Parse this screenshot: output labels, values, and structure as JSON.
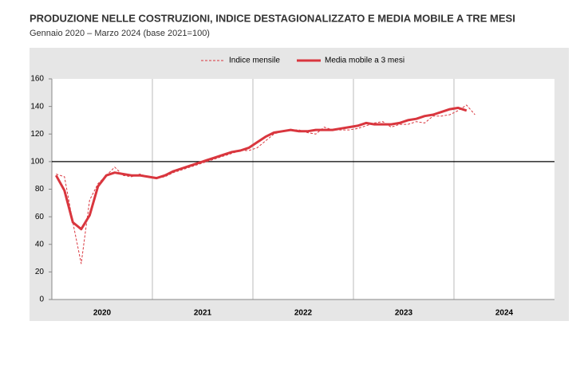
{
  "chart_data": {
    "type": "line",
    "title": "PRODUZIONE NELLE COSTRUZIONI, INDICE DESTAGIONALIZZATO E MEDIA MOBILE A TRE MESI",
    "subtitle": "Gennaio 2020 – Marzo 2024 (base 2021=100)",
    "x_labels": [
      "2020",
      "2021",
      "2022",
      "2023",
      "2024"
    ],
    "categories": [
      null,
      null,
      null,
      null,
      null,
      null,
      null,
      null,
      null,
      null,
      null,
      null,
      null,
      null,
      null,
      null,
      null,
      null,
      null,
      null,
      null,
      null,
      null,
      null,
      null,
      null,
      null,
      null,
      null,
      null,
      null,
      null,
      null,
      null,
      null,
      null,
      null,
      null,
      null,
      null,
      null,
      null,
      null,
      null,
      null,
      null,
      null,
      null,
      null,
      null,
      null
    ],
    "series": [
      {
        "name": "Indice mensile",
        "color": "#d9363e",
        "dashed": true,
        "values": [
          91,
          89,
          56,
          26,
          72,
          84,
          90,
          96,
          90,
          89,
          91,
          89,
          88,
          89,
          92,
          94,
          96,
          98,
          100,
          102,
          104,
          106,
          108,
          108,
          110,
          115,
          120,
          122,
          123,
          123,
          121,
          120,
          125,
          123,
          123,
          123,
          124,
          126,
          128,
          129,
          125,
          127,
          127,
          129,
          128,
          133,
          133,
          134,
          137,
          141,
          134
        ]
      },
      {
        "name": "Media mobile a 3 mesi",
        "color": "#d9363e",
        "dashed": false,
        "values": [
          90,
          79,
          56,
          51,
          61,
          82,
          90,
          92,
          91,
          90,
          90,
          89,
          88,
          90,
          93,
          95,
          97,
          99,
          101,
          103,
          105,
          107,
          108,
          110,
          114,
          118,
          121,
          122,
          123,
          122,
          122,
          123,
          123,
          123,
          124,
          125,
          126,
          128,
          127,
          127,
          127,
          128,
          130,
          131,
          133,
          134,
          136,
          138,
          139,
          137,
          null
        ]
      }
    ],
    "ylim": [
      0,
      160
    ],
    "yticks": [
      0,
      20,
      40,
      60,
      80,
      100,
      120,
      140,
      160
    ],
    "reference_line": 100
  }
}
